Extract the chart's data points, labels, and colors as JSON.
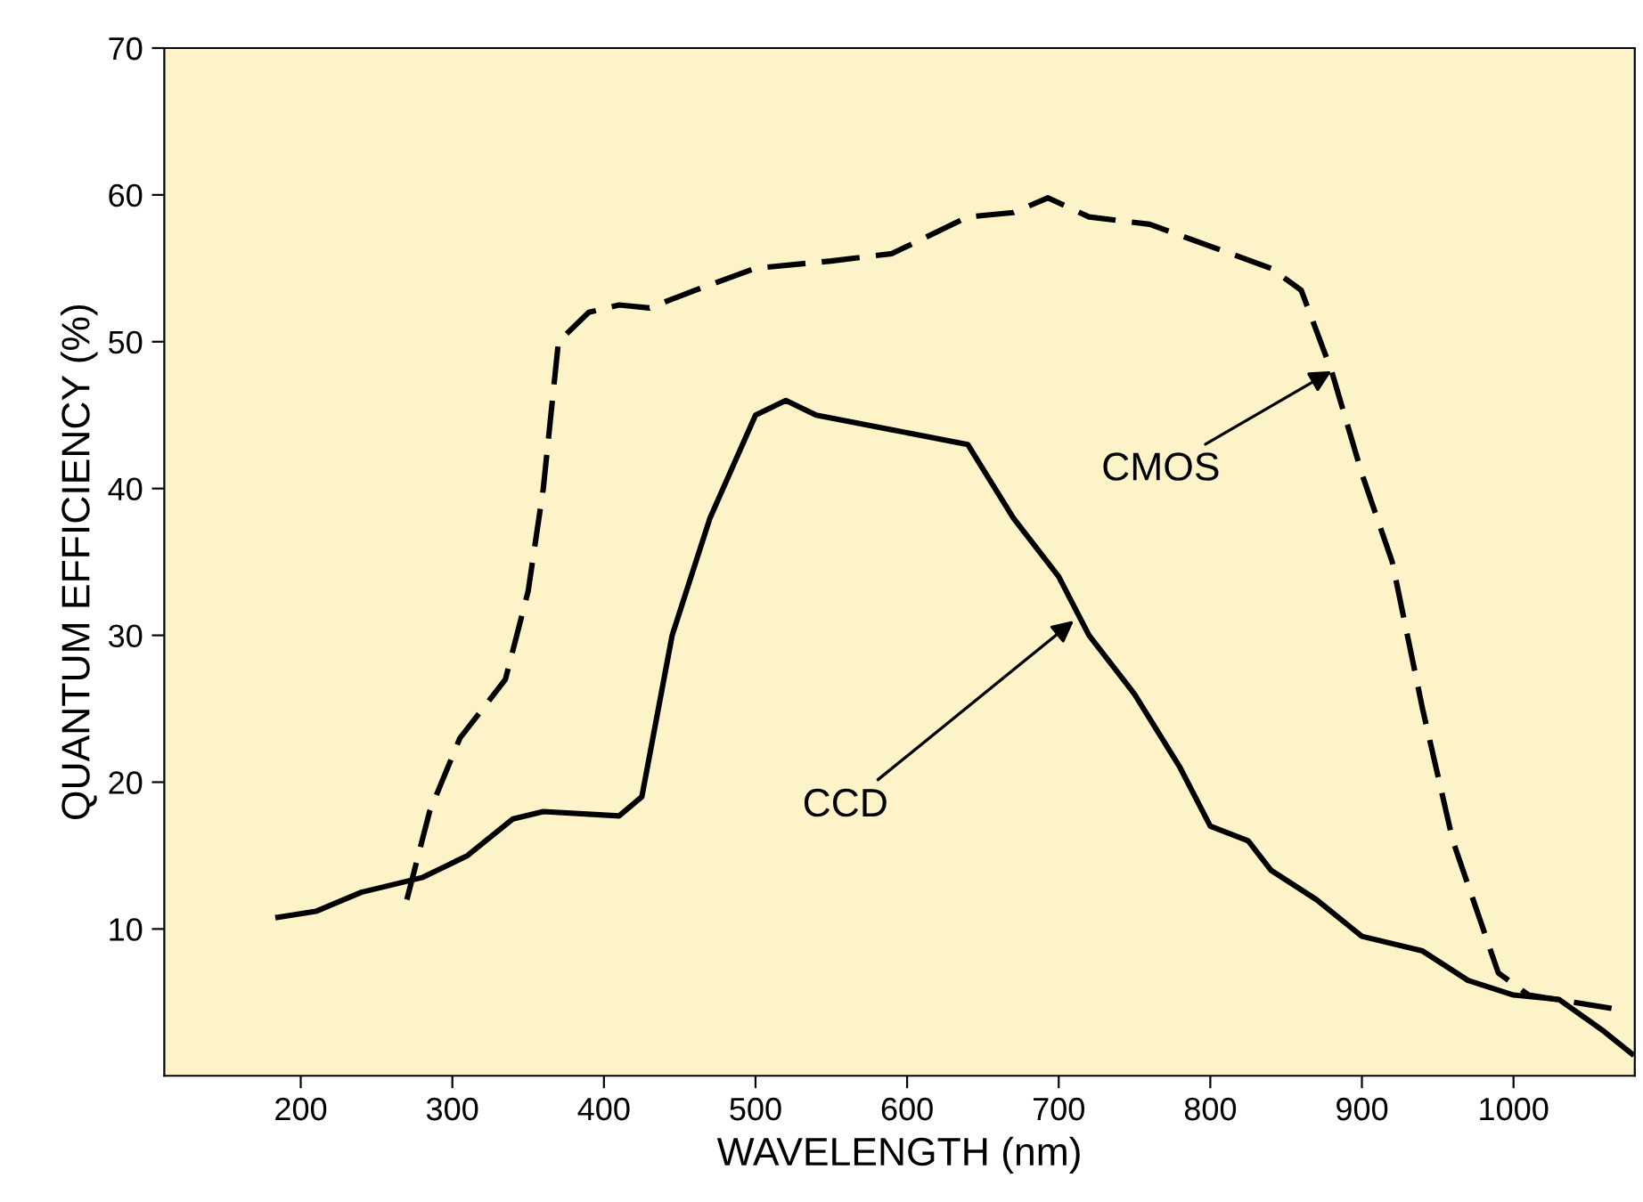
{
  "chart_data": {
    "type": "line",
    "xlabel": "WAVELENGTH (nm)",
    "ylabel": "QUANTUM EFFICIENCY (%)",
    "xlim": [
      110,
      1080
    ],
    "xticks": [
      200,
      300,
      400,
      500,
      600,
      700,
      800,
      900,
      1000
    ],
    "ylim": [
      0,
      70
    ],
    "yticks": [
      10,
      20,
      30,
      40,
      50,
      60,
      70
    ],
    "grid": false,
    "legend": false,
    "marker": "none",
    "series": [
      {
        "color": "#000000",
        "line_style": "dashed",
        "x": [
          270,
          285,
          305,
          320,
          335,
          350,
          360,
          370,
          390,
          410,
          430,
          460,
          500,
          550,
          590,
          640,
          670,
          693,
          720,
          760,
          800,
          840,
          860,
          880,
          900,
          920,
          940,
          960,
          990,
          1010,
          1040,
          1070
        ],
        "values": [
          12,
          18,
          23,
          25,
          27,
          33,
          40,
          50,
          52,
          52.5,
          52.3,
          53.5,
          55,
          55.5,
          56,
          58.5,
          58.8,
          59.8,
          58.5,
          58,
          56.5,
          55,
          53.5,
          48,
          41,
          35,
          25,
          16,
          7,
          5.5,
          5,
          4.5
        ]
      },
      {
        "color": "#000000",
        "line_style": "solid",
        "x": [
          185,
          210,
          240,
          280,
          310,
          340,
          360,
          410,
          425,
          445,
          470,
          500,
          520,
          540,
          590,
          640,
          670,
          700,
          720,
          750,
          780,
          800,
          825,
          840,
          870,
          900,
          940,
          970,
          1000,
          1030,
          1060,
          1078
        ],
        "values": [
          10.8,
          11.2,
          12.5,
          13.5,
          15,
          17.5,
          18,
          17.7,
          19,
          30,
          38,
          45,
          46,
          45,
          44,
          43,
          38,
          34,
          30,
          26,
          21,
          17,
          16,
          14,
          12,
          9.5,
          8.5,
          6.5,
          5.5,
          5.2,
          3,
          1.5
        ]
      }
    ],
    "annotations": [
      {
        "text": "CMOS",
        "x": 880,
        "y": 48
      },
      {
        "text": "CCD",
        "x": 710,
        "y": 31
      }
    ]
  }
}
